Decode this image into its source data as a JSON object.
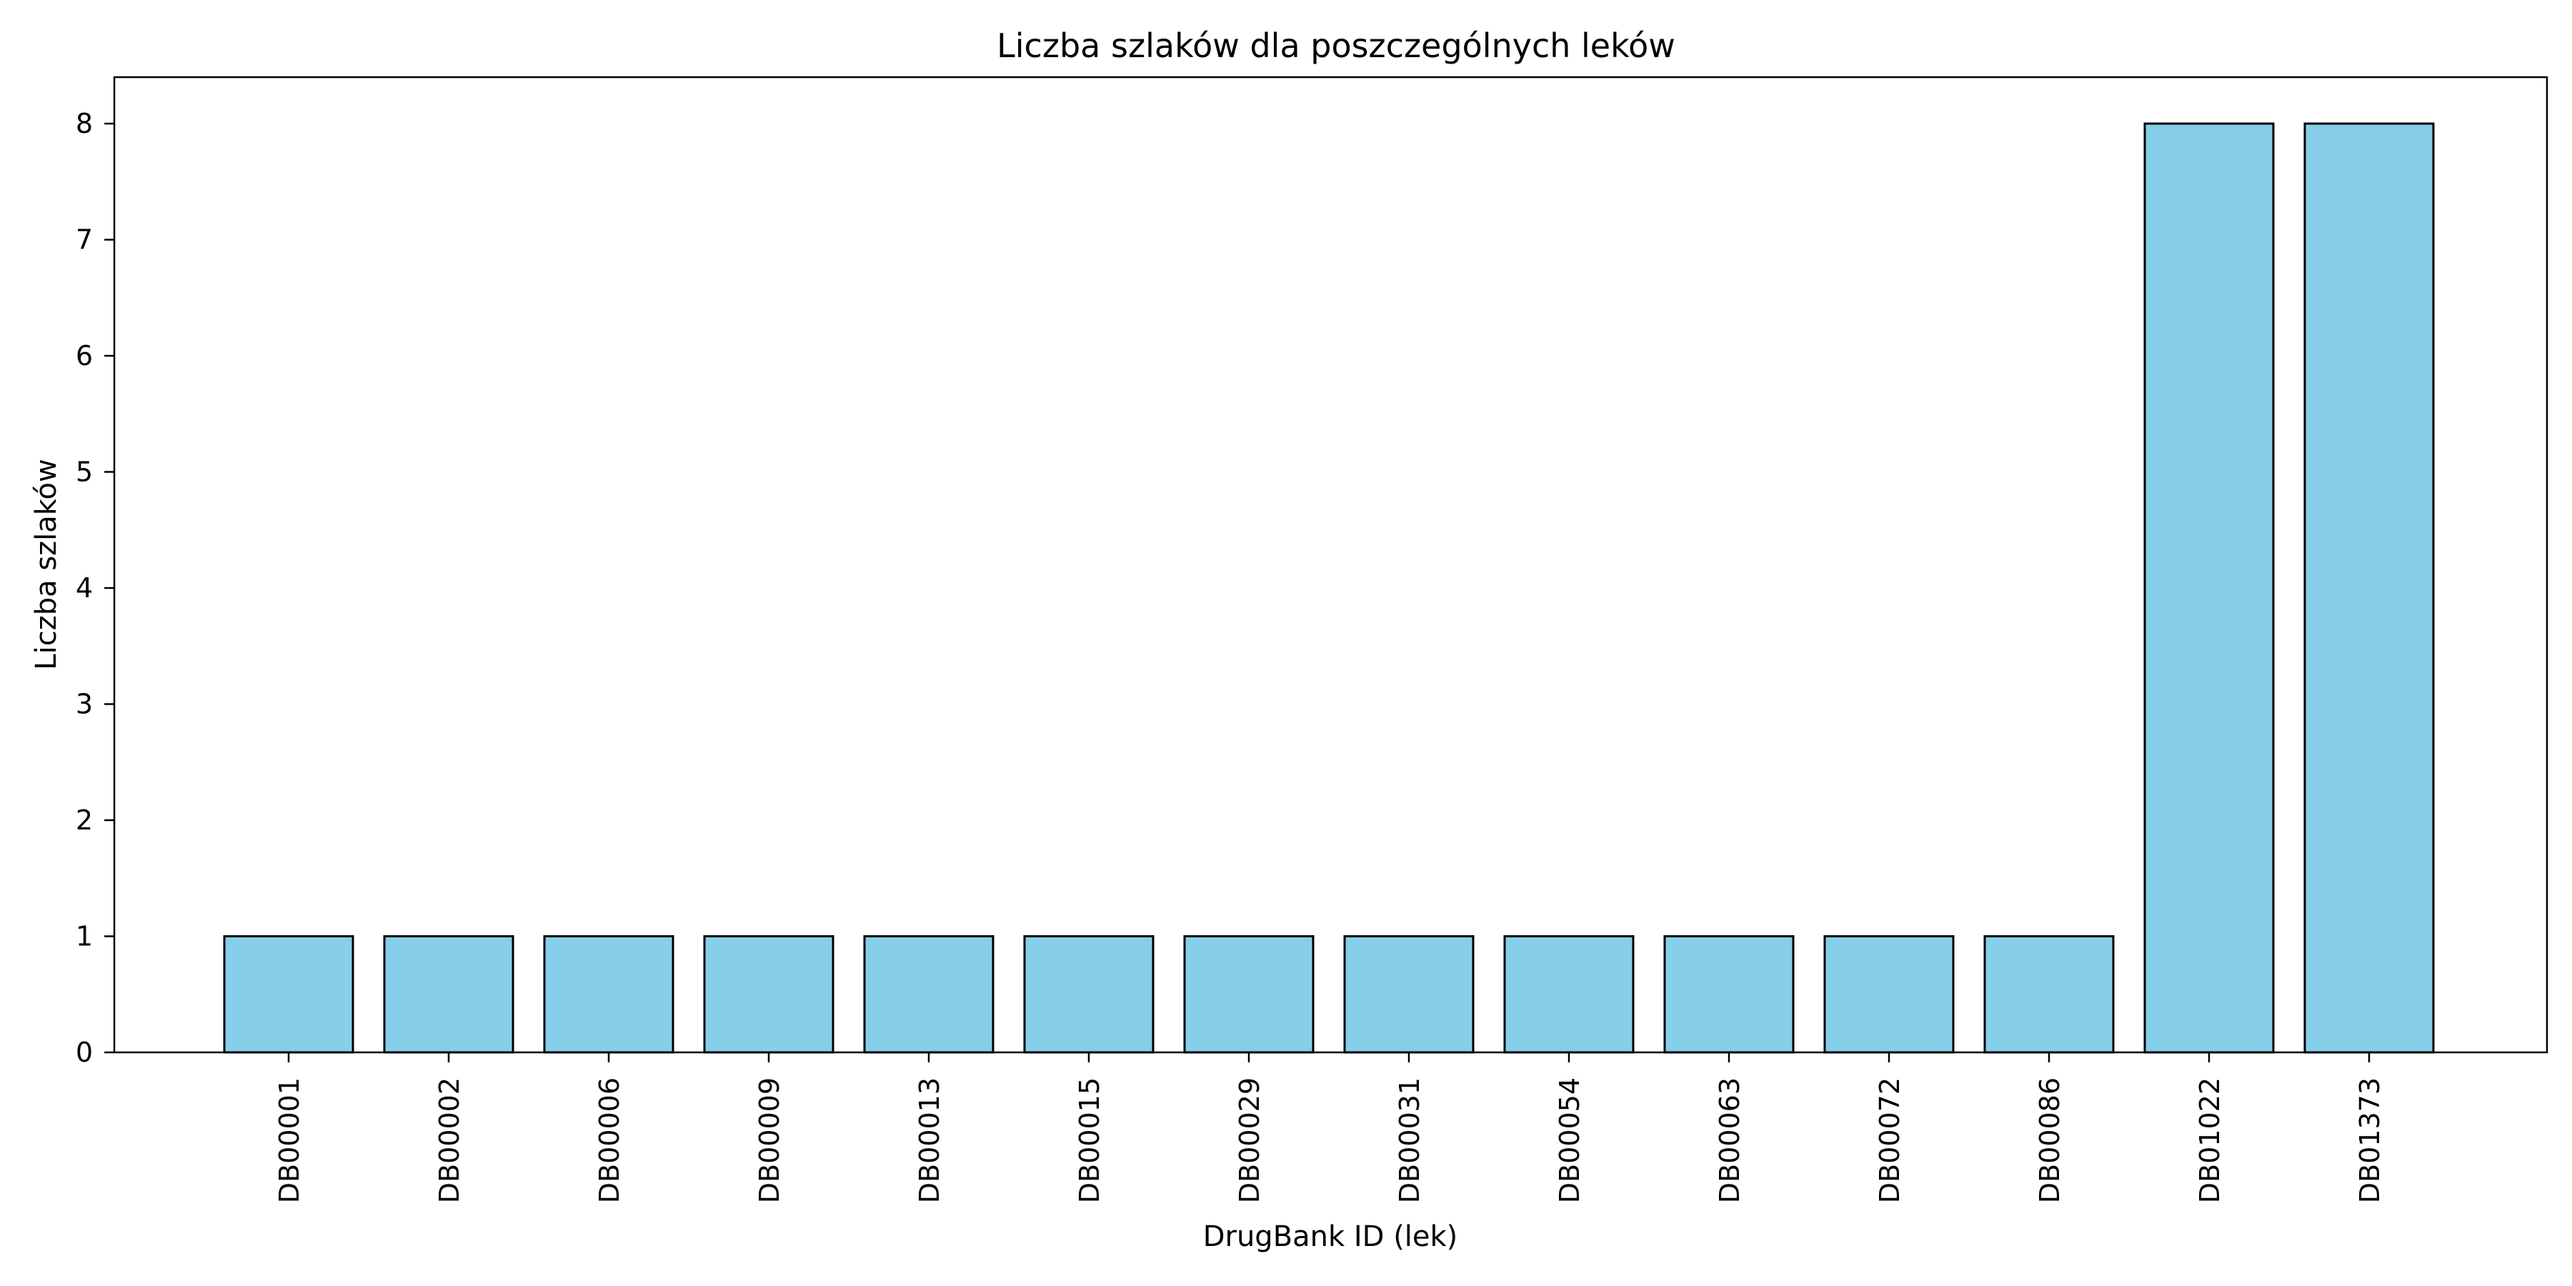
{
  "chart_data": {
    "type": "bar",
    "title": "Liczba szlaków dla poszczególnych leków",
    "xlabel": "DrugBank ID (lek)",
    "ylabel": "Liczba szlaków",
    "categories": [
      "DB00001",
      "DB00002",
      "DB00006",
      "DB00009",
      "DB00013",
      "DB00015",
      "DB00029",
      "DB00031",
      "DB00054",
      "DB00063",
      "DB00072",
      "DB00086",
      "DB01022",
      "DB01373"
    ],
    "values": [
      1,
      1,
      1,
      1,
      1,
      1,
      1,
      1,
      1,
      1,
      1,
      1,
      8,
      8
    ],
    "ylim": [
      0,
      8.4
    ],
    "yticks": [
      0,
      1,
      2,
      3,
      4,
      5,
      6,
      7,
      8
    ],
    "grid": false,
    "legend": false,
    "colors": {
      "bar_fill": "#87CEEB",
      "bar_edge": "#000000"
    }
  }
}
